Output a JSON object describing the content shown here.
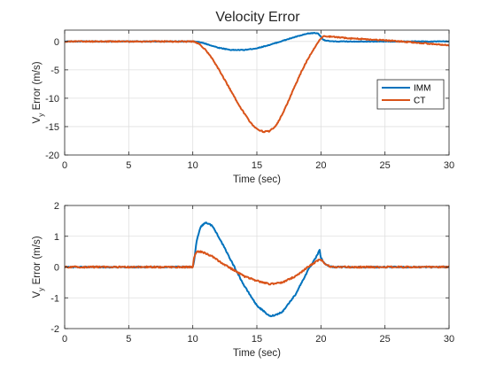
{
  "title": "Velocity Error",
  "colors": {
    "IMM": "#0072BD",
    "CT": "#D95319",
    "grid": "#dfdfdf",
    "axis": "#262626"
  },
  "chart_data": [
    {
      "type": "line",
      "xlabel": "Time (sec)",
      "ylabel_main": "V",
      "ylabel_sub": "y",
      "ylabel_rest": " Error (m/s)",
      "xlim": [
        0,
        30
      ],
      "ylim": [
        -20,
        2
      ],
      "xticks": [
        0,
        5,
        10,
        15,
        20,
        25,
        30
      ],
      "yticks": [
        -20,
        -15,
        -10,
        -5,
        0
      ],
      "grid": true,
      "legend": {
        "placement": "right",
        "entries": [
          "IMM",
          "CT"
        ]
      },
      "series": [
        {
          "name": "IMM",
          "x": [
            0,
            5,
            10,
            10.5,
            11,
            12,
            13,
            14,
            15,
            16,
            17,
            18,
            19,
            19.5,
            19.8,
            20,
            20.2,
            20.5,
            21,
            22,
            25,
            30
          ],
          "y": [
            0,
            0,
            0,
            -0.1,
            -0.4,
            -1.1,
            -1.5,
            -1.5,
            -1.2,
            -0.6,
            0.1,
            0.8,
            1.4,
            1.5,
            1.4,
            0.8,
            0.3,
            0.1,
            0.0,
            0.0,
            0.0,
            0.0
          ]
        },
        {
          "name": "CT",
          "x": [
            0,
            5,
            10,
            10.5,
            11,
            11.5,
            12,
            12.5,
            13,
            13.5,
            14,
            14.5,
            15,
            15.5,
            16,
            16.5,
            17,
            17.5,
            18,
            18.5,
            19,
            19.5,
            20,
            20.2,
            20.5,
            21,
            22,
            25,
            28,
            30
          ],
          "y": [
            0,
            0,
            0,
            -0.4,
            -1.5,
            -3.0,
            -4.8,
            -6.8,
            -8.8,
            -10.8,
            -12.6,
            -14.3,
            -15.4,
            -15.9,
            -15.8,
            -14.8,
            -12.8,
            -10.3,
            -7.7,
            -5.2,
            -3.0,
            -1.1,
            0.6,
            0.9,
            0.9,
            0.8,
            0.6,
            0.2,
            -0.3,
            -0.7
          ]
        }
      ]
    },
    {
      "type": "line",
      "xlabel": "Time (sec)",
      "ylabel_main": "V",
      "ylabel_sub": "y",
      "ylabel_rest": " Error (m/s)",
      "xlim": [
        0,
        30
      ],
      "ylim": [
        -2,
        2
      ],
      "xticks": [
        0,
        5,
        10,
        15,
        20,
        25,
        30
      ],
      "yticks": [
        -2,
        -1,
        0,
        1,
        2
      ],
      "grid": true,
      "series": [
        {
          "name": "IMM",
          "x": [
            0,
            5,
            10,
            10.1,
            10.3,
            10.6,
            11,
            11.5,
            12,
            13,
            14,
            15,
            16,
            16.5,
            17,
            18,
            19,
            19.6,
            19.9,
            20,
            20.3,
            20.7,
            21,
            22,
            25,
            30
          ],
          "y": [
            0,
            0,
            0,
            0.2,
            0.85,
            1.3,
            1.45,
            1.35,
            1.0,
            0.2,
            -0.6,
            -1.25,
            -1.6,
            -1.55,
            -1.45,
            -0.9,
            -0.1,
            0.3,
            0.55,
            0.3,
            0.1,
            0.02,
            0.0,
            0.0,
            0.0,
            0.0
          ]
        },
        {
          "name": "CT",
          "x": [
            0,
            5,
            10,
            10.1,
            10.3,
            10.6,
            11,
            11.5,
            12,
            13,
            14,
            15,
            16,
            17,
            18,
            19,
            19.7,
            20,
            20.3,
            20.7,
            21,
            22,
            25,
            30
          ],
          "y": [
            0,
            0,
            0,
            0.3,
            0.5,
            0.5,
            0.45,
            0.35,
            0.2,
            -0.05,
            -0.3,
            -0.45,
            -0.55,
            -0.5,
            -0.3,
            0.0,
            0.2,
            0.25,
            0.1,
            0.02,
            0.0,
            0.0,
            0.0,
            0.0
          ]
        }
      ]
    }
  ]
}
